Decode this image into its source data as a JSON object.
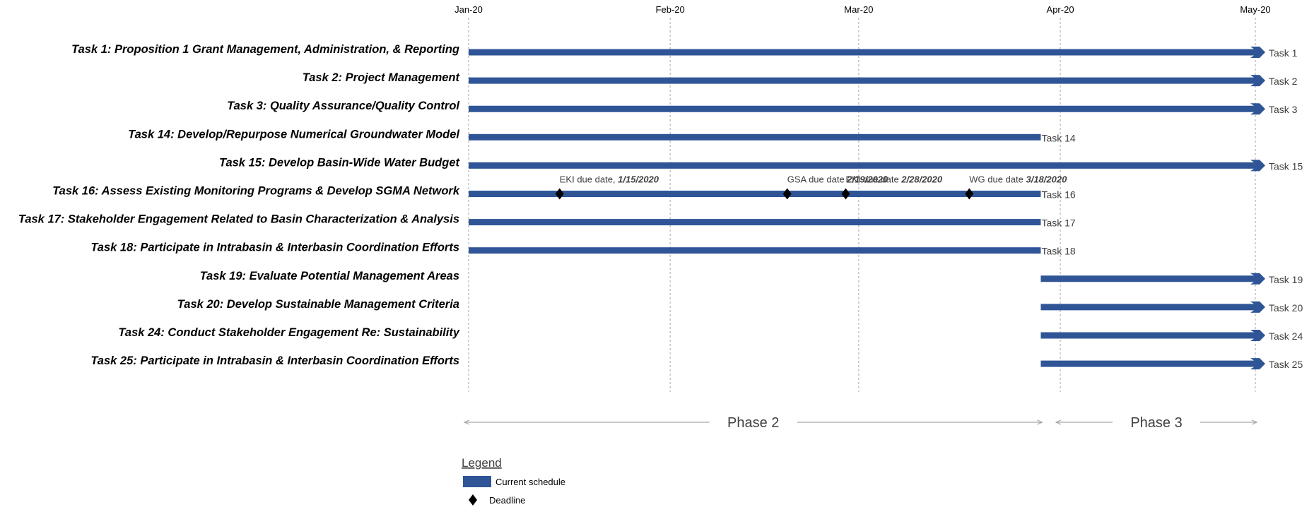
{
  "chart_data": {
    "type": "gantt",
    "title": "",
    "x_axis": {
      "ticks": [
        "Jan-20",
        "Feb-20",
        "Mar-20",
        "Apr-20",
        "May-20"
      ],
      "tick_dates": [
        "2020-01-01",
        "2020-02-01",
        "2020-03-01",
        "2020-04-01",
        "2020-05-01"
      ],
      "grid": true,
      "range": [
        "2020-01-01",
        "2020-05-01"
      ]
    },
    "tasks": [
      {
        "name": "Task 1: Proposition 1 Grant Management, Administration, & Reporting",
        "start": "2020-01-01",
        "end": "2020-05-01",
        "label": "Task 1",
        "arrow": true
      },
      {
        "name": "Task 2: Project Management",
        "start": "2020-01-01",
        "end": "2020-05-01",
        "label": "Task 2",
        "arrow": true
      },
      {
        "name": "Task 3: Quality Assurance/Quality Control",
        "start": "2020-01-01",
        "end": "2020-05-01",
        "label": "Task 3",
        "arrow": true
      },
      {
        "name": "Task 14: Develop/Repurpose Numerical Groundwater Model",
        "start": "2020-01-01",
        "end": "2020-03-29",
        "label": "Task 14",
        "arrow": false
      },
      {
        "name": "Task 15: Develop Basin-Wide Water Budget",
        "start": "2020-01-01",
        "end": "2020-05-01",
        "label": "Task 15",
        "arrow": true
      },
      {
        "name": "Task 16: Assess Existing Monitoring Programs & Develop SGMA Network",
        "start": "2020-01-01",
        "end": "2020-03-29",
        "label": "Task 16",
        "arrow": false
      },
      {
        "name": "Task 17: Stakeholder Engagement Related to Basin Characterization & Analysis",
        "start": "2020-01-01",
        "end": "2020-03-29",
        "label": "Task 17",
        "arrow": false
      },
      {
        "name": "Task 18: Participate in Intrabasin & Interbasin Coordination Efforts",
        "start": "2020-01-01",
        "end": "2020-03-29",
        "label": "Task 18",
        "arrow": false
      },
      {
        "name": "Task 19: Evaluate Potential Management Areas",
        "start": "2020-03-29",
        "end": "2020-05-01",
        "label": "Task 19",
        "arrow": true
      },
      {
        "name": "Task 20: Develop Sustainable Management Criteria",
        "start": "2020-03-29",
        "end": "2020-05-01",
        "label": "Task 20",
        "arrow": true
      },
      {
        "name": "Task 24: Conduct Stakeholder Engagement Re: Sustainability",
        "start": "2020-03-29",
        "end": "2020-05-01",
        "label": "Task 24",
        "arrow": true
      },
      {
        "name": "Task 25: Participate in Intrabasin & Interbasin Coordination Efforts",
        "start": "2020-03-29",
        "end": "2020-05-01",
        "label": "Task 25",
        "arrow": true
      }
    ],
    "milestones": [
      {
        "task": "Task 16",
        "date": "2020-01-15",
        "prefix": "EKI due date,",
        "date_label": "1/15/2020"
      },
      {
        "task": "Task 16",
        "date": "2020-02-19",
        "prefix": "GSA due date",
        "date_label": "2/19/2020"
      },
      {
        "task": "Task 16",
        "date": "2020-02-28",
        "prefix": "EKI due date",
        "date_label": "2/28/2020"
      },
      {
        "task": "Task 16",
        "date": "2020-03-18",
        "prefix": "WG due date",
        "date_label": "3/18/2020"
      }
    ],
    "phases": [
      {
        "name": "Phase 2",
        "start": "2020-01-01",
        "end": "2020-03-29"
      },
      {
        "name": "Phase 3",
        "start": "2020-04-01",
        "end": "2020-05-01"
      }
    ],
    "legend": {
      "title": "Legend",
      "items": [
        {
          "label": "Current schedule",
          "symbol": "bar"
        },
        {
          "label": "Deadline",
          "symbol": "diamond"
        }
      ]
    },
    "colors": {
      "bar": "#2f5597",
      "grid": "#a6a6a6",
      "phase_line": "#a6a6a6",
      "milestone": "#000000"
    }
  }
}
